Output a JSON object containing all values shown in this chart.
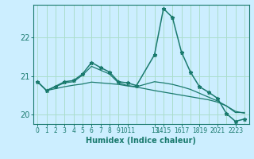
{
  "title": "",
  "xlabel": "Humidex (Indice chaleur)",
  "background_color": "#cceeff",
  "grid_color": "#aaddcc",
  "line_color": "#1a7a6e",
  "xlim": [
    -0.5,
    23.5
  ],
  "ylim": [
    19.75,
    22.85
  ],
  "yticks": [
    20,
    21,
    22
  ],
  "xtick_positions": [
    0,
    1,
    2,
    3,
    4,
    5,
    6,
    7,
    8,
    9,
    10.5,
    13,
    14.5,
    15.5,
    16.5,
    17.5,
    18.5,
    19.5,
    20.5,
    21.5,
    22.5
  ],
  "xtick_labels": [
    "0",
    "1",
    "2",
    "3",
    "4",
    "5",
    "6",
    "7",
    "8",
    "9",
    "1011",
    "13",
    "1415",
    "",
    "1617",
    "",
    "1819",
    "",
    "2021",
    "",
    "2223"
  ],
  "series1_x": [
    0,
    1,
    2,
    3,
    4,
    5,
    6,
    7,
    8,
    9,
    10,
    11,
    13,
    14,
    15,
    16,
    17,
    18,
    19,
    20,
    21,
    22,
    23
  ],
  "series1_y": [
    20.85,
    20.62,
    20.73,
    20.85,
    20.88,
    21.05,
    21.35,
    21.22,
    21.1,
    20.85,
    20.82,
    20.75,
    21.55,
    22.75,
    22.52,
    21.62,
    21.1,
    20.72,
    20.58,
    20.42,
    20.02,
    19.82,
    19.88
  ],
  "series2_x": [
    0,
    1,
    2,
    3,
    4,
    5,
    6,
    7,
    8,
    9,
    10,
    11,
    13,
    14,
    15,
    16,
    17,
    18,
    19,
    20,
    21,
    22,
    23
  ],
  "series2_y": [
    20.85,
    20.62,
    20.72,
    20.82,
    20.85,
    21.02,
    21.25,
    21.15,
    21.05,
    20.82,
    20.75,
    20.72,
    20.85,
    20.82,
    20.78,
    20.72,
    20.65,
    20.55,
    20.45,
    20.35,
    20.22,
    20.05,
    20.05
  ],
  "series3_x": [
    0,
    1,
    2,
    3,
    4,
    5,
    6,
    7,
    8,
    9,
    10,
    11,
    13,
    14,
    15,
    16,
    17,
    18,
    19,
    20,
    21,
    22,
    23
  ],
  "series3_y": [
    20.85,
    20.62,
    20.67,
    20.72,
    20.76,
    20.79,
    20.84,
    20.82,
    20.8,
    20.78,
    20.74,
    20.71,
    20.62,
    20.58,
    20.54,
    20.5,
    20.46,
    20.42,
    20.38,
    20.32,
    20.22,
    20.08,
    20.03
  ]
}
